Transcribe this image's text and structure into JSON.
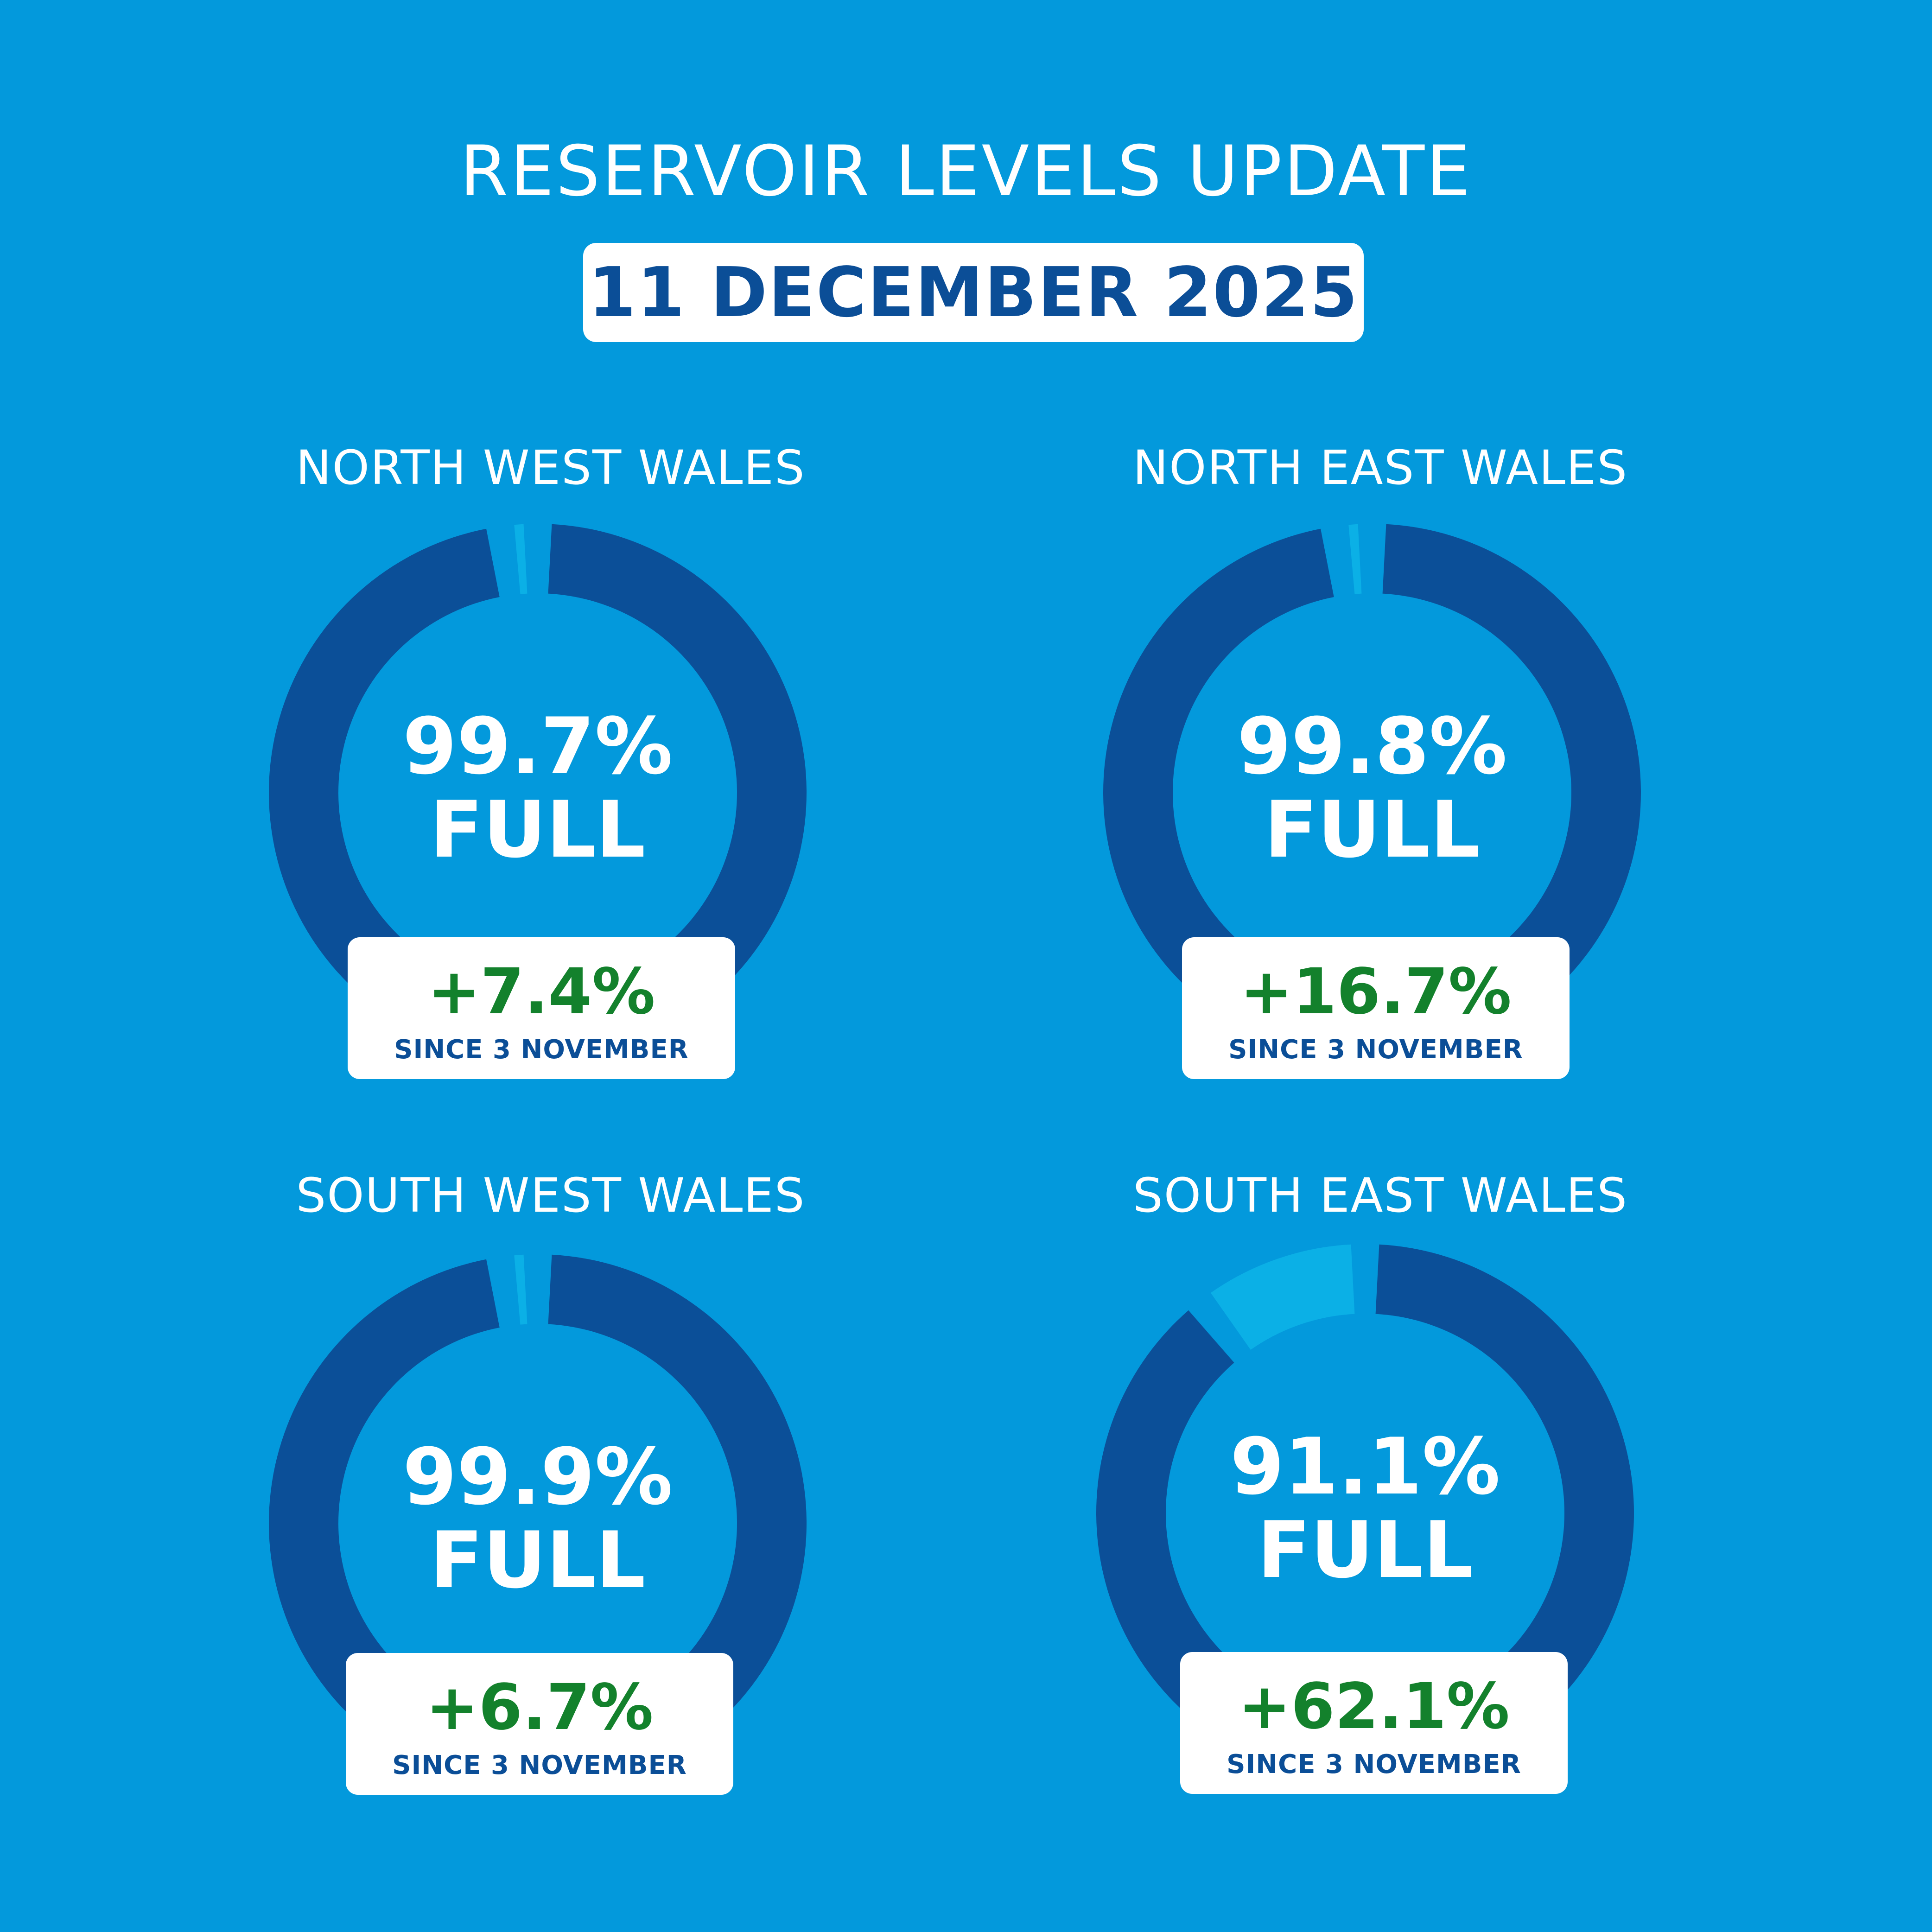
{
  "header": {
    "title": "RESERVOIR LEVELS UPDATE",
    "date": "11 DECEMBER 2025"
  },
  "colors": {
    "background": "#0399dc",
    "fill": "#0b4f98",
    "remaining": "#0bb0e6",
    "date_text": "#0b4e97",
    "change_text": "#13812c"
  },
  "regions": [
    {
      "name": "NORTH WEST WALES",
      "percent_label": "99.7%",
      "full_label": "FULL",
      "change": "+7.4%",
      "since": "SINCE 3 NOVEMBER"
    },
    {
      "name": "NORTH EAST WALES",
      "percent_label": "99.8%",
      "full_label": "FULL",
      "change": "+16.7%",
      "since": "SINCE 3 NOVEMBER"
    },
    {
      "name": "SOUTH WEST WALES",
      "percent_label": "99.9%",
      "full_label": "FULL",
      "change": "+6.7%",
      "since": "SINCE 3 NOVEMBER"
    },
    {
      "name": "SOUTH EAST WALES",
      "percent_label": "91.1%",
      "full_label": "FULL",
      "change": "+62.1%",
      "since": "SINCE 3 NOVEMBER"
    }
  ],
  "chart_data": [
    {
      "type": "pie",
      "title": "NORTH WEST WALES",
      "values": [
        99.7,
        0.3
      ],
      "categories": [
        "full",
        "remaining"
      ]
    },
    {
      "type": "pie",
      "title": "NORTH EAST WALES",
      "values": [
        99.8,
        0.2
      ],
      "categories": [
        "full",
        "remaining"
      ]
    },
    {
      "type": "pie",
      "title": "SOUTH WEST WALES",
      "values": [
        99.9,
        0.1
      ],
      "categories": [
        "full",
        "remaining"
      ]
    },
    {
      "type": "pie",
      "title": "SOUTH EAST WALES",
      "values": [
        91.1,
        8.9
      ],
      "categories": [
        "full",
        "remaining"
      ]
    }
  ]
}
